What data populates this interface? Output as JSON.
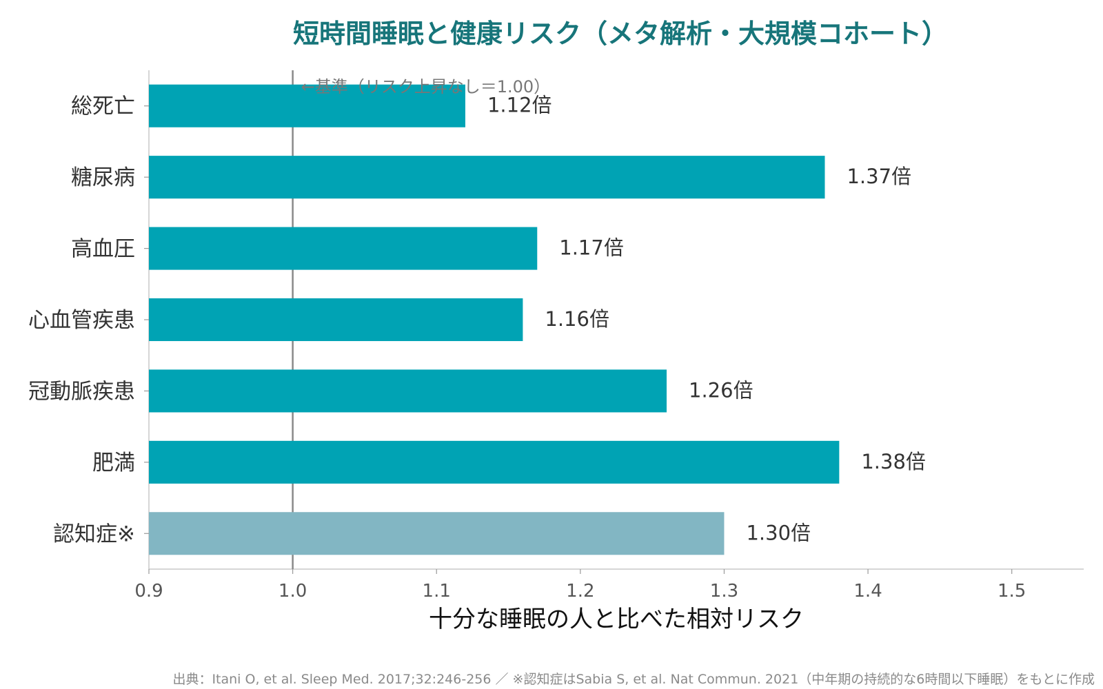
{
  "chart_data": {
    "type": "bar",
    "orientation": "horizontal",
    "title": "短時間睡眠と健康リスク（メタ解析・大規模コホート）",
    "xlabel": "十分な睡眠の人と比べた相対リスク",
    "xlim": [
      0.9,
      1.55
    ],
    "xticks": [
      "0.9",
      "1.0",
      "1.1",
      "1.2",
      "1.3",
      "1.4",
      "1.5"
    ],
    "categories": [
      "総死亡",
      "糖尿病",
      "高血圧",
      "心血管疾患",
      "冠動脈疾患",
      "肥満",
      "認知症※"
    ],
    "values": [
      1.12,
      1.37,
      1.17,
      1.16,
      1.26,
      1.38,
      1.3
    ],
    "value_labels": [
      "1.12倍",
      "1.37倍",
      "1.17倍",
      "1.16倍",
      "1.26倍",
      "1.38倍",
      "1.30倍"
    ],
    "bar_colors": [
      "#00a3b4",
      "#00a3b4",
      "#00a3b4",
      "#00a3b4",
      "#00a3b4",
      "#00a3b4",
      "#82b6c3"
    ],
    "reference_line": {
      "value": 1.0,
      "label": "←基準（リスク上昇なし＝1.00）",
      "color": "#888888"
    },
    "grid": false
  },
  "source_note": "出典：Itani O, et al. Sleep Med. 2017;32:246-256 ／ ※認知症はSabia S, et al. Nat Commun. 2021（中年期の持続的な6時間以下睡眠）をもとに作成"
}
